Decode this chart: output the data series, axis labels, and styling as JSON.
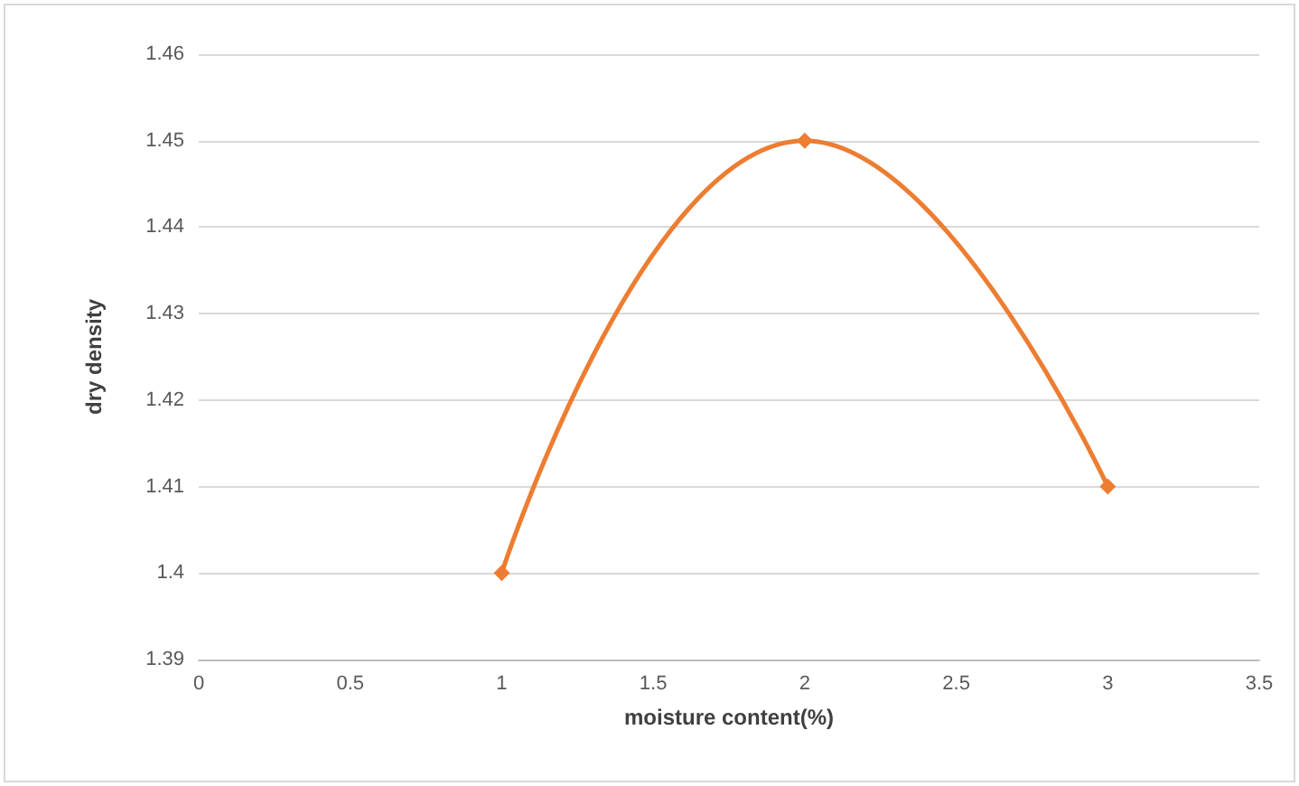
{
  "chart_data": {
    "type": "line",
    "xlabel": "moisture content(%)",
    "ylabel": "dry density",
    "x": [
      1,
      2,
      3
    ],
    "series": [
      {
        "color": "#ed7d31",
        "values": [
          1.4,
          1.45,
          1.41
        ]
      }
    ],
    "xlim": [
      0,
      3.5
    ],
    "xticks": [
      0,
      0.5,
      1,
      1.5,
      2,
      2.5,
      3,
      3.5
    ],
    "ylim": [
      1.39,
      1.46
    ],
    "yticks": [
      1.39,
      1.4,
      1.41,
      1.42,
      1.43,
      1.44,
      1.45,
      1.46
    ],
    "grid": "y",
    "marker": "diamond",
    "line_style": "solid"
  }
}
